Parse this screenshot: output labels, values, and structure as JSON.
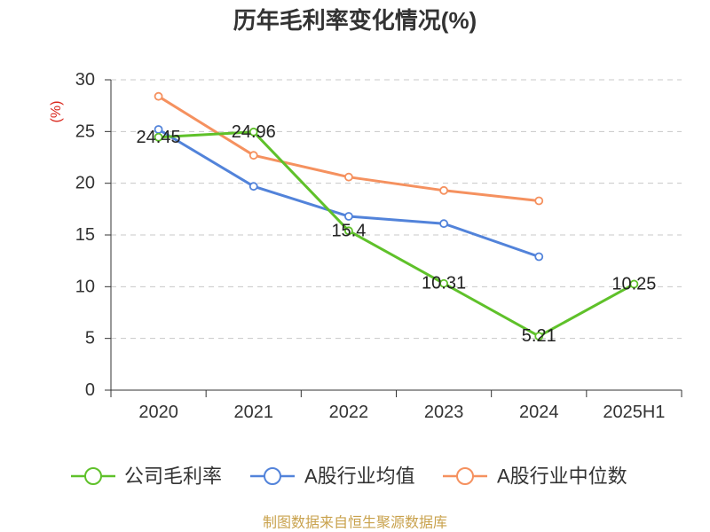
{
  "chart_data": {
    "type": "line",
    "title": "历年毛利率变化情况(%)",
    "ylabel": "(%)",
    "categories": [
      "2020",
      "2021",
      "2022",
      "2023",
      "2024",
      "2025H1"
    ],
    "ylim": [
      0,
      30
    ],
    "yticks": [
      0,
      5,
      10,
      15,
      20,
      25,
      30
    ],
    "grid": true,
    "legend_position": "bottom",
    "series": [
      {
        "name": "公司毛利率",
        "color": "#5fc12a",
        "show_labels": true,
        "values": [
          24.45,
          24.96,
          15.4,
          10.31,
          5.21,
          10.25
        ]
      },
      {
        "name": "A股行业均值",
        "color": "#5283da",
        "show_labels": false,
        "values": [
          25.2,
          19.7,
          16.8,
          16.1,
          12.9,
          null
        ]
      },
      {
        "name": "A股行业中位数",
        "color": "#f5915f",
        "show_labels": false,
        "values": [
          28.4,
          22.7,
          20.6,
          19.3,
          18.3,
          null
        ]
      }
    ]
  },
  "footer": {
    "source": "制图数据来自恒生聚源数据库"
  },
  "colors": {
    "axis": "#333333",
    "grid": "#c8c8c8",
    "ylabel": "#d9261c",
    "footer": "#c9a24d",
    "marker_fill": "#ffffff"
  }
}
